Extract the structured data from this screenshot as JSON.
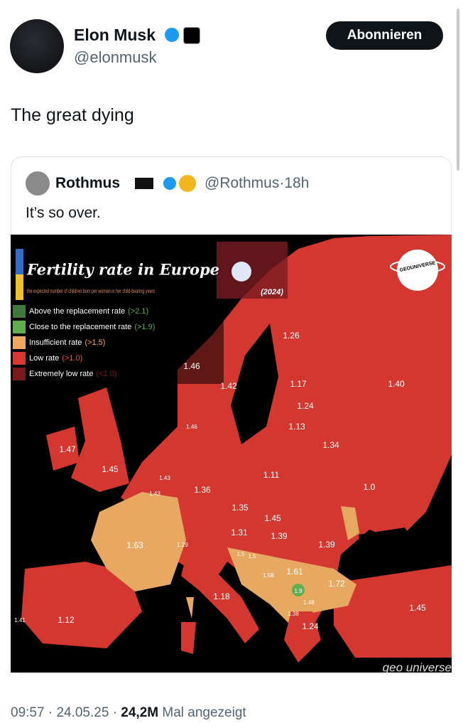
{
  "header": {
    "name": "Elon Musk",
    "handle": "@elonmusk",
    "follow_button": "Abonnieren"
  },
  "tweet": {
    "text": "The great dying"
  },
  "quoted": {
    "name": "Rothmus",
    "handle": "@Rothmus",
    "separator": "·",
    "time": "18h",
    "text": "It’s so over.",
    "map": {
      "title": "Fertility rate in Europe",
      "subtitle": "the expected number of children born per woman in her child-bearing years",
      "year": "(2024)",
      "legend": [
        {
          "text": "Above the replacement rate",
          "rate": "(>2.1)"
        },
        {
          "text": "Close to the replacement rate",
          "rate": "(>1.9)"
        },
        {
          "text": "Insufficient rate",
          "rate": "(>1.5)"
        },
        {
          "text": "Low rate",
          "rate": "(>1.0)"
        },
        {
          "text": "Extremely low rate",
          "rate": "(<1.0)"
        }
      ],
      "logo": "GEOUNIVERSE",
      "watermark": "geo universe",
      "labels": [
        "1.46",
        "1.42",
        "1.26",
        "1.17",
        "1.40",
        "1.24",
        "1.13",
        "1.34",
        "1.47",
        "1.45",
        "1.46",
        "1.43",
        "1.43",
        "1.11",
        "1.36",
        "1.0",
        "1.35",
        "1.45",
        "1.31",
        "1.39",
        "1.39",
        "1.63",
        "1.29",
        "1.5",
        "1.5",
        "1.58",
        "1.61",
        "1.72",
        "1.9",
        "1.48",
        "1.38",
        "1.18",
        "1.24",
        "1.45",
        "1.41",
        "1.12"
      ]
    }
  },
  "footer": {
    "time": "09:57",
    "separator": "·",
    "date": "24.05.25",
    "views": "24,2M",
    "views_label": "Mal angezeigt"
  }
}
